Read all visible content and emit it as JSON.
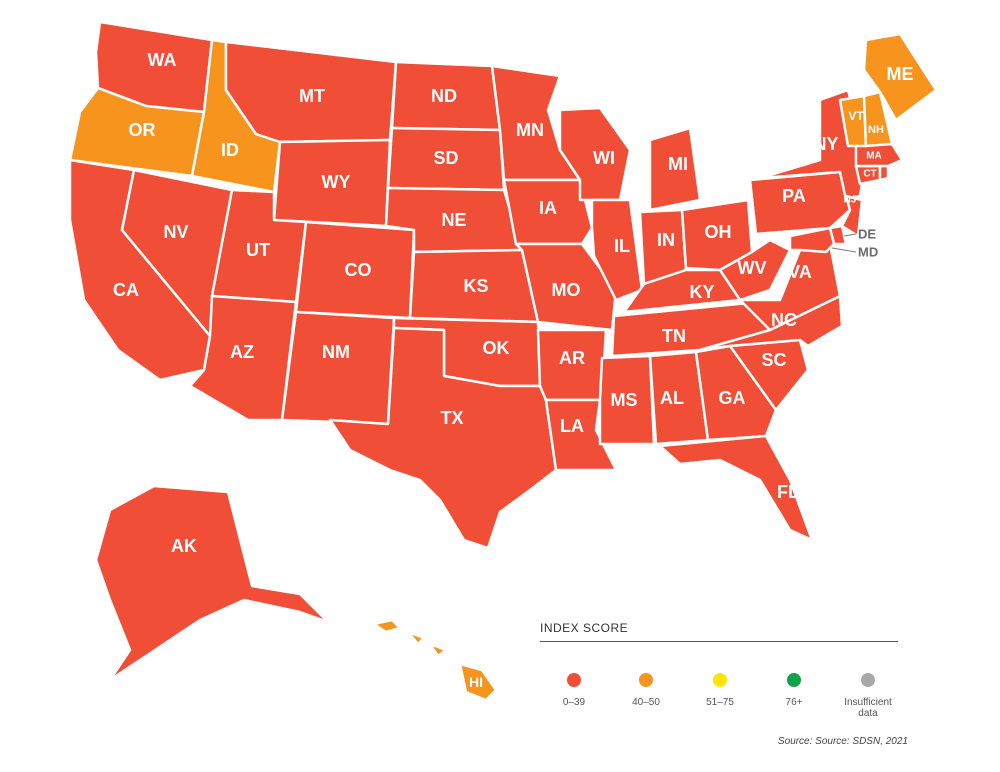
{
  "colors": {
    "0-39": "#f04e36",
    "40-50": "#f7941d",
    "51-75": "#ffe500",
    "76+": "#13a04a",
    "insufficient": "#a8a8a8"
  },
  "states": [
    {
      "id": "WA",
      "score": "0-39"
    },
    {
      "id": "OR",
      "score": "40-50"
    },
    {
      "id": "ID",
      "score": "40-50"
    },
    {
      "id": "MT",
      "score": "0-39"
    },
    {
      "id": "WY",
      "score": "0-39"
    },
    {
      "id": "CA",
      "score": "0-39"
    },
    {
      "id": "NV",
      "score": "0-39"
    },
    {
      "id": "UT",
      "score": "0-39"
    },
    {
      "id": "CO",
      "score": "0-39"
    },
    {
      "id": "AZ",
      "score": "0-39"
    },
    {
      "id": "NM",
      "score": "0-39"
    },
    {
      "id": "ND",
      "score": "0-39"
    },
    {
      "id": "SD",
      "score": "0-39"
    },
    {
      "id": "NE",
      "score": "0-39"
    },
    {
      "id": "KS",
      "score": "0-39"
    },
    {
      "id": "OK",
      "score": "0-39"
    },
    {
      "id": "TX",
      "score": "0-39"
    },
    {
      "id": "MN",
      "score": "0-39"
    },
    {
      "id": "IA",
      "score": "0-39"
    },
    {
      "id": "MO",
      "score": "0-39"
    },
    {
      "id": "AR",
      "score": "0-39"
    },
    {
      "id": "LA",
      "score": "0-39"
    },
    {
      "id": "WI",
      "score": "0-39"
    },
    {
      "id": "IL",
      "score": "0-39"
    },
    {
      "id": "MI",
      "score": "0-39"
    },
    {
      "id": "IN",
      "score": "0-39"
    },
    {
      "id": "OH",
      "score": "0-39"
    },
    {
      "id": "KY",
      "score": "0-39"
    },
    {
      "id": "TN",
      "score": "0-39"
    },
    {
      "id": "MS",
      "score": "0-39"
    },
    {
      "id": "AL",
      "score": "0-39"
    },
    {
      "id": "GA",
      "score": "0-39"
    },
    {
      "id": "FL",
      "score": "0-39"
    },
    {
      "id": "SC",
      "score": "0-39"
    },
    {
      "id": "NC",
      "score": "0-39"
    },
    {
      "id": "VA",
      "score": "0-39"
    },
    {
      "id": "WV",
      "score": "0-39"
    },
    {
      "id": "PA",
      "score": "0-39"
    },
    {
      "id": "NY",
      "score": "0-39"
    },
    {
      "id": "NJ",
      "score": "0-39"
    },
    {
      "id": "DE",
      "score": "0-39"
    },
    {
      "id": "MD",
      "score": "0-39"
    },
    {
      "id": "CT",
      "score": "0-39"
    },
    {
      "id": "RI",
      "score": "0-39"
    },
    {
      "id": "MA",
      "score": "0-39"
    },
    {
      "id": "VT",
      "score": "40-50"
    },
    {
      "id": "NH",
      "score": "40-50"
    },
    {
      "id": "ME",
      "score": "40-50"
    },
    {
      "id": "AK",
      "score": "0-39"
    },
    {
      "id": "HI",
      "score": "40-50"
    }
  ],
  "legend": {
    "title": "INDEX SCORE",
    "items": [
      {
        "key": "0-39",
        "label": "0–39"
      },
      {
        "key": "40-50",
        "label": "40–50"
      },
      {
        "key": "51-75",
        "label": "51–75"
      },
      {
        "key": "76+",
        "label": "76+"
      },
      {
        "key": "insufficient",
        "label": "Insufficient data"
      }
    ]
  },
  "source": "Source: Source: SDSN, 2021"
}
